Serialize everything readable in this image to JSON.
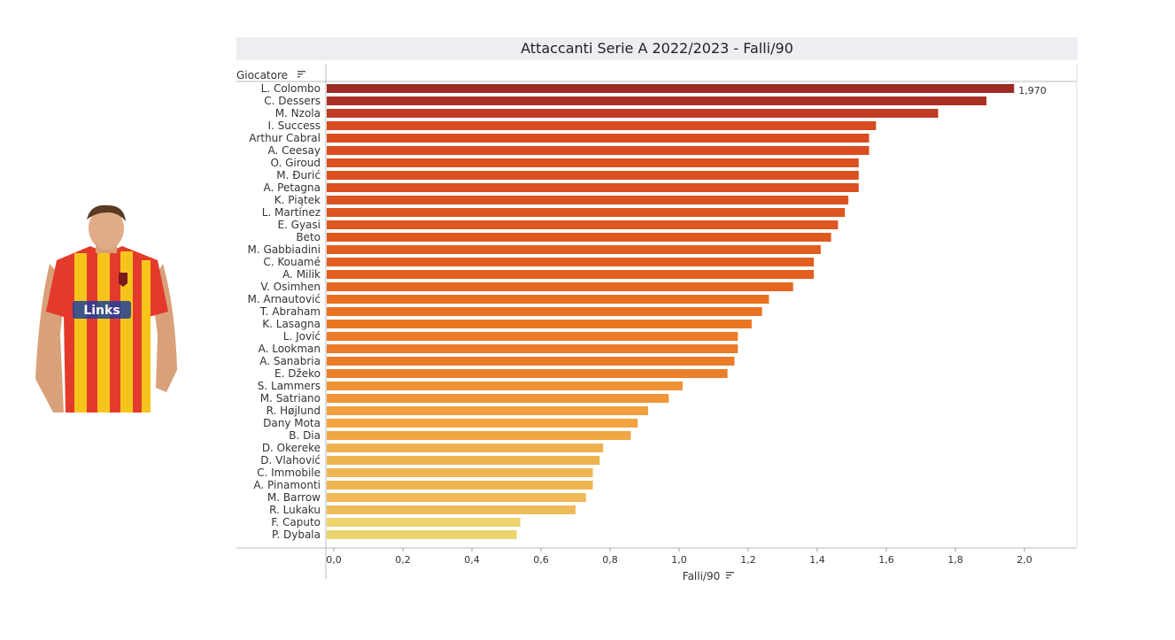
{
  "player_photo": "player-photo",
  "chart_data": {
    "type": "bar",
    "orientation": "horizontal",
    "title": "Attaccanti Serie A 2022/2023 - Falli/90",
    "row_header": "Giocatore",
    "xlabel": "Falli/90",
    "xlim": [
      0,
      2.2
    ],
    "x_ticks": [
      "0,0",
      "0,2",
      "0,4",
      "0,6",
      "0,8",
      "1,0",
      "1,2",
      "1,4",
      "1,6",
      "1,8",
      "2,0"
    ],
    "top_value_label": "1,970",
    "categories": [
      "L. Colombo",
      "C. Dessers",
      "M. Nzola",
      "I. Success",
      "Arthur Cabral",
      "A. Ceesay",
      "O. Giroud",
      "M. Đurić",
      "A. Petagna",
      "K. Piątek",
      "L. Martínez",
      "E. Gyasi",
      "Beto",
      "M. Gabbiadini",
      "C. Kouamé",
      "A. Milik",
      "V. Osimhen",
      "M. Arnautović",
      "T. Abraham",
      "K. Lasagna",
      "L. Jović",
      "A. Lookman",
      "A. Sanabria",
      "E. Džeko",
      "S. Lammers",
      "M. Satriano",
      "R. Højlund",
      "Dany Mota",
      "B. Dia",
      "D. Okereke",
      "D. Vlahović",
      "C. Immobile",
      "A. Pinamonti",
      "M. Barrow",
      "R. Lukaku",
      "F. Caputo",
      "P. Dybala"
    ],
    "values": [
      1.97,
      1.89,
      1.75,
      1.57,
      1.55,
      1.55,
      1.52,
      1.52,
      1.52,
      1.49,
      1.48,
      1.46,
      1.44,
      1.41,
      1.39,
      1.39,
      1.33,
      1.26,
      1.24,
      1.21,
      1.17,
      1.17,
      1.16,
      1.14,
      1.01,
      0.97,
      0.91,
      0.88,
      0.86,
      0.78,
      0.77,
      0.75,
      0.75,
      0.73,
      0.7,
      0.54,
      0.53
    ],
    "color_scale": [
      "#ebd46e",
      "#f1a23f",
      "#e97020",
      "#d6451f",
      "#9c2b25"
    ]
  }
}
